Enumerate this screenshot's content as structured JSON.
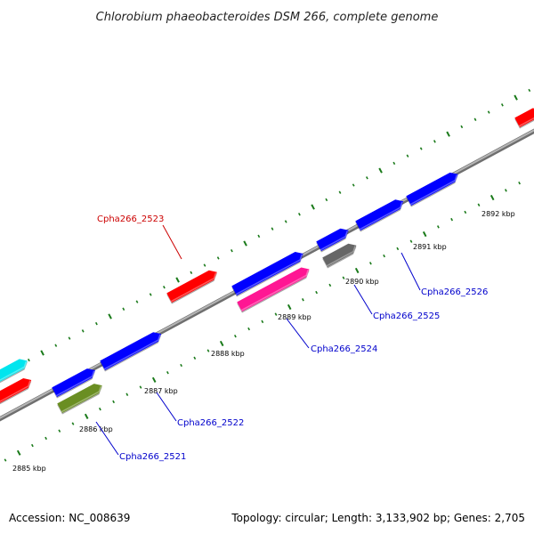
{
  "title": "Chlorobium phaeobacteroides DSM 266, complete genome",
  "footer": {
    "accession": "Accession: NC_008639",
    "summary": "Topology: circular; Length: 3,133,902 bp; Genes: 2,705"
  },
  "colors": {
    "backbone": "#8a8a8a",
    "tick": "#1a7a1a",
    "label_forward": "#cc0000",
    "label_reverse": "#0000cc"
  },
  "scale_labels": [
    "2885 kbp",
    "2886 kbp",
    "2887 kbp",
    "2888 kbp",
    "2889 kbp",
    "2890 kbp",
    "2891 kbp",
    "2892 kbp"
  ],
  "genes": [
    {
      "label": "",
      "color": "#00e5ee",
      "strand": "forward"
    },
    {
      "label": "",
      "color": "#ff0000",
      "strand": "forward"
    },
    {
      "label": "",
      "color": "#0000ff",
      "strand": "reverse"
    },
    {
      "label": "Cpha266_2521",
      "color": "#6b8e23",
      "strand": "reverse"
    },
    {
      "label": "Cpha266_2522",
      "color": "#0000ff",
      "strand": "reverse"
    },
    {
      "label": "Cpha266_2523",
      "color": "#ff0000",
      "strand": "forward"
    },
    {
      "label": "",
      "color": "#0000ff",
      "strand": "reverse"
    },
    {
      "label": "Cpha266_2524",
      "color": "#ff1493",
      "strand": "reverse"
    },
    {
      "label": "",
      "color": "#0000ff",
      "strand": "reverse"
    },
    {
      "label": "Cpha266_2525",
      "color": "#666666",
      "strand": "reverse"
    },
    {
      "label": "Cpha266_2526",
      "color": "#0000ff",
      "strand": "reverse"
    },
    {
      "label": "",
      "color": "#0000ff",
      "strand": "reverse"
    },
    {
      "label": "",
      "color": "#ff0000",
      "strand": "forward"
    }
  ]
}
